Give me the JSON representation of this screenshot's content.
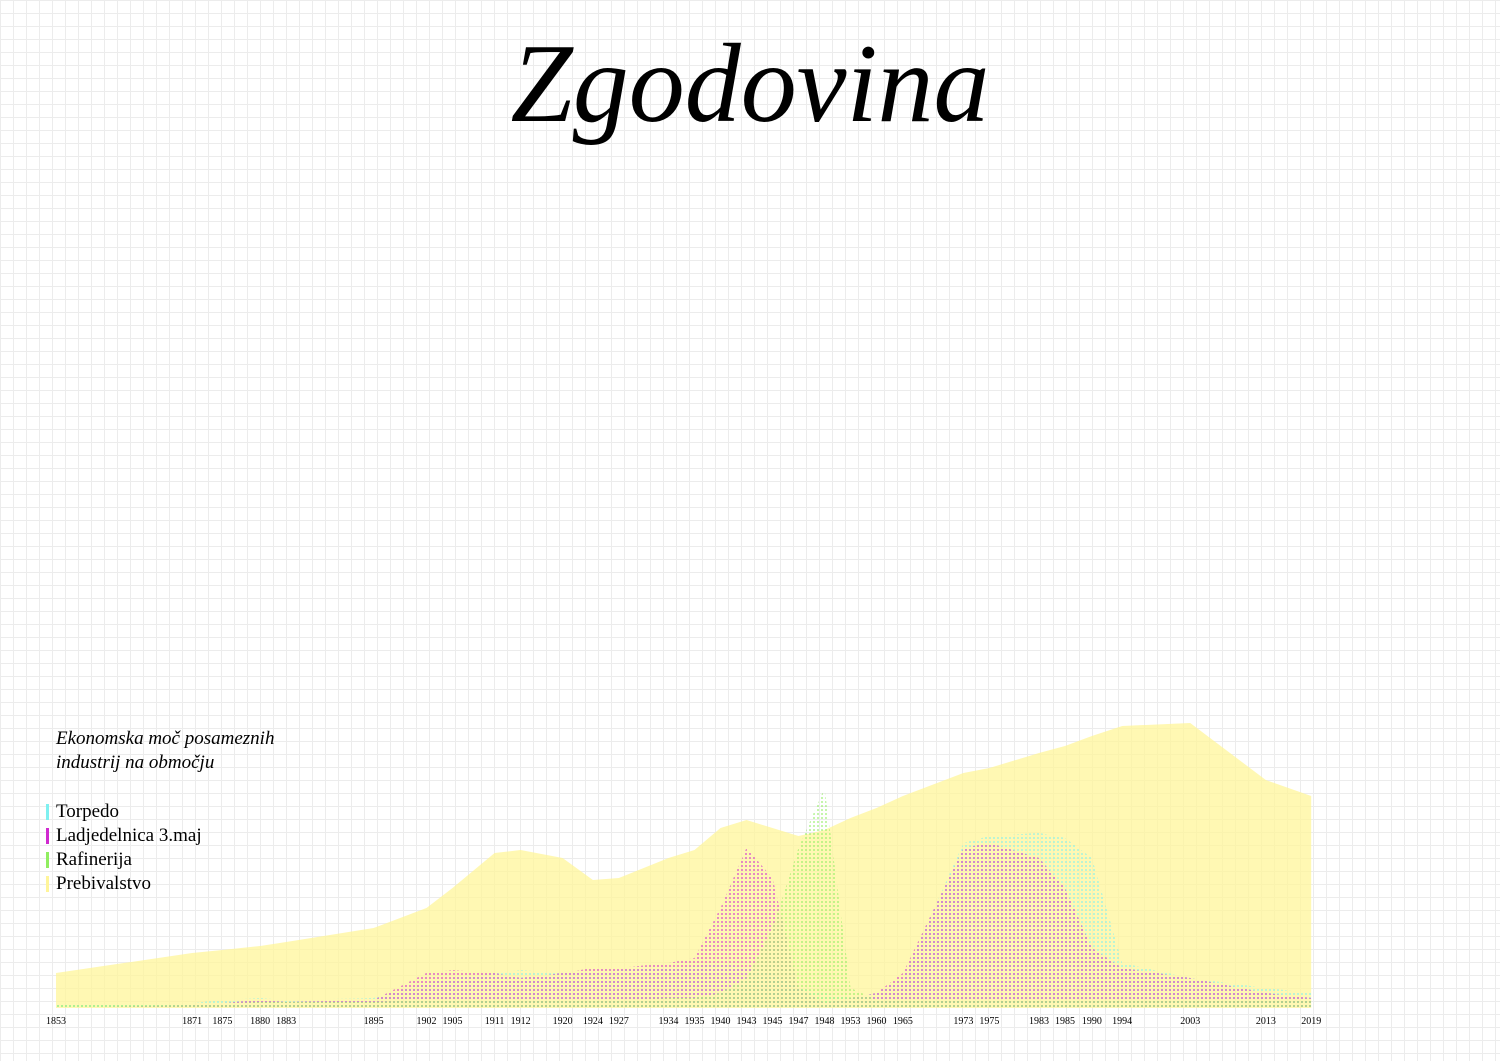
{
  "chart_data": {
    "type": "area",
    "title": "Zgodovina",
    "subtitle": "Ekonomska moč posameznih industrij na območju",
    "x": [
      1853,
      1871,
      1875,
      1880,
      1883,
      1895,
      1902,
      1905,
      1911,
      1912,
      1920,
      1924,
      1927,
      1934,
      1935,
      1940,
      1943,
      1945,
      1947,
      1948,
      1953,
      1960,
      1965,
      1973,
      1975,
      1983,
      1985,
      1990,
      1994,
      2003,
      2013,
      2019
    ],
    "xlim": [
      1853,
      2040
    ],
    "ylim": [
      0,
      300
    ],
    "series": [
      {
        "name": "Prebivalstvo",
        "color": "#fff59a",
        "values": [
          35,
          55,
          58,
          62,
          66,
          80,
          100,
          120,
          155,
          158,
          150,
          128,
          130,
          150,
          158,
          180,
          188,
          180,
          172,
          178,
          190,
          200,
          212,
          235,
          240,
          255,
          262,
          272,
          282,
          285,
          228,
          212
        ]
      },
      {
        "name": "Torpedo",
        "color": "#7ff0f0",
        "values": [
          5,
          5,
          8,
          10,
          8,
          10,
          25,
          30,
          35,
          38,
          35,
          35,
          38,
          40,
          42,
          45,
          40,
          35,
          20,
          15,
          10,
          15,
          30,
          165,
          172,
          175,
          170,
          150,
          45,
          30,
          20,
          15
        ]
      },
      {
        "name": "Ladjedelnica 3.maj",
        "color": "#d02ad0",
        "values": [
          0,
          3,
          5,
          8,
          6,
          8,
          35,
          38,
          35,
          30,
          35,
          40,
          40,
          45,
          50,
          100,
          160,
          130,
          20,
          5,
          10,
          15,
          35,
          160,
          165,
          150,
          120,
          60,
          40,
          30,
          15,
          10
        ]
      },
      {
        "name": "Rafinerija",
        "color": "#90ee60",
        "values": [
          5,
          5,
          5,
          6,
          6,
          6,
          8,
          8,
          8,
          8,
          8,
          8,
          8,
          10,
          10,
          15,
          30,
          80,
          160,
          220,
          20,
          8,
          8,
          8,
          8,
          8,
          8,
          8,
          8,
          8,
          8,
          8
        ]
      }
    ],
    "legend_order": [
      "Torpedo",
      "Ladjedelnica 3.maj",
      "Rafinerija",
      "Prebivalstvo"
    ]
  }
}
